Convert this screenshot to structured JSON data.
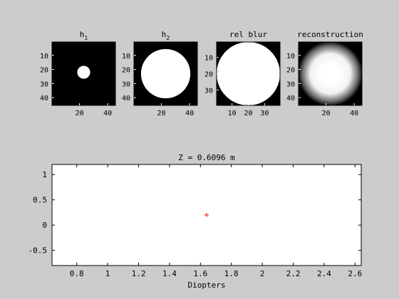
{
  "figure": {
    "background_color": "#cccccc",
    "axes_color": "#000000",
    "title": "Z = 0.6096 m"
  },
  "panels": [
    {
      "title_base": "h",
      "title_sub": "1",
      "image": {
        "kind": "disk",
        "size": [
          45,
          45
        ],
        "center": [
          23,
          22
        ],
        "radius": 4.6,
        "edge": "hard"
      },
      "xticks": [
        20,
        40
      ],
      "yticks": [
        10,
        20,
        30,
        40
      ]
    },
    {
      "title_base": "h",
      "title_sub": "2",
      "image": {
        "kind": "disk",
        "size": [
          45,
          45
        ],
        "center": [
          23,
          23
        ],
        "radius": 17.5,
        "edge": "hard"
      },
      "xticks": [
        20,
        40
      ],
      "yticks": [
        10,
        20,
        30,
        40
      ]
    },
    {
      "title_base": "rel blur",
      "title_sub": "",
      "image": {
        "kind": "disk",
        "size": [
          39,
          39
        ],
        "center": [
          20,
          20
        ],
        "radius": 19.5,
        "edge": "hard"
      },
      "xticks": [
        10,
        20,
        30
      ],
      "yticks": [
        10,
        20,
        30
      ]
    },
    {
      "title_base": "reconstruction",
      "title_sub": "",
      "image": {
        "kind": "disk",
        "size": [
          45,
          45
        ],
        "center": [
          23,
          23
        ],
        "radius": 20,
        "edge": "soft"
      },
      "xticks": [
        20,
        40
      ],
      "yticks": [
        10,
        20,
        30,
        40
      ]
    }
  ],
  "chart_data": {
    "type": "scatter",
    "title": "Z = 0.6096 m",
    "xlabel": "Diopters",
    "ylabel": "",
    "xlim": [
      0.64,
      2.64
    ],
    "ylim": [
      -0.8,
      1.2
    ],
    "xticks": [
      0.8,
      1,
      1.2,
      1.4,
      1.6,
      1.8,
      2,
      2.2,
      2.4,
      2.6
    ],
    "yticks": [
      1,
      0.5,
      0,
      -0.5
    ],
    "grid": false,
    "points": [
      {
        "x": 1.64,
        "y": 0.2,
        "marker": "+",
        "color": "#ff0000"
      }
    ]
  }
}
